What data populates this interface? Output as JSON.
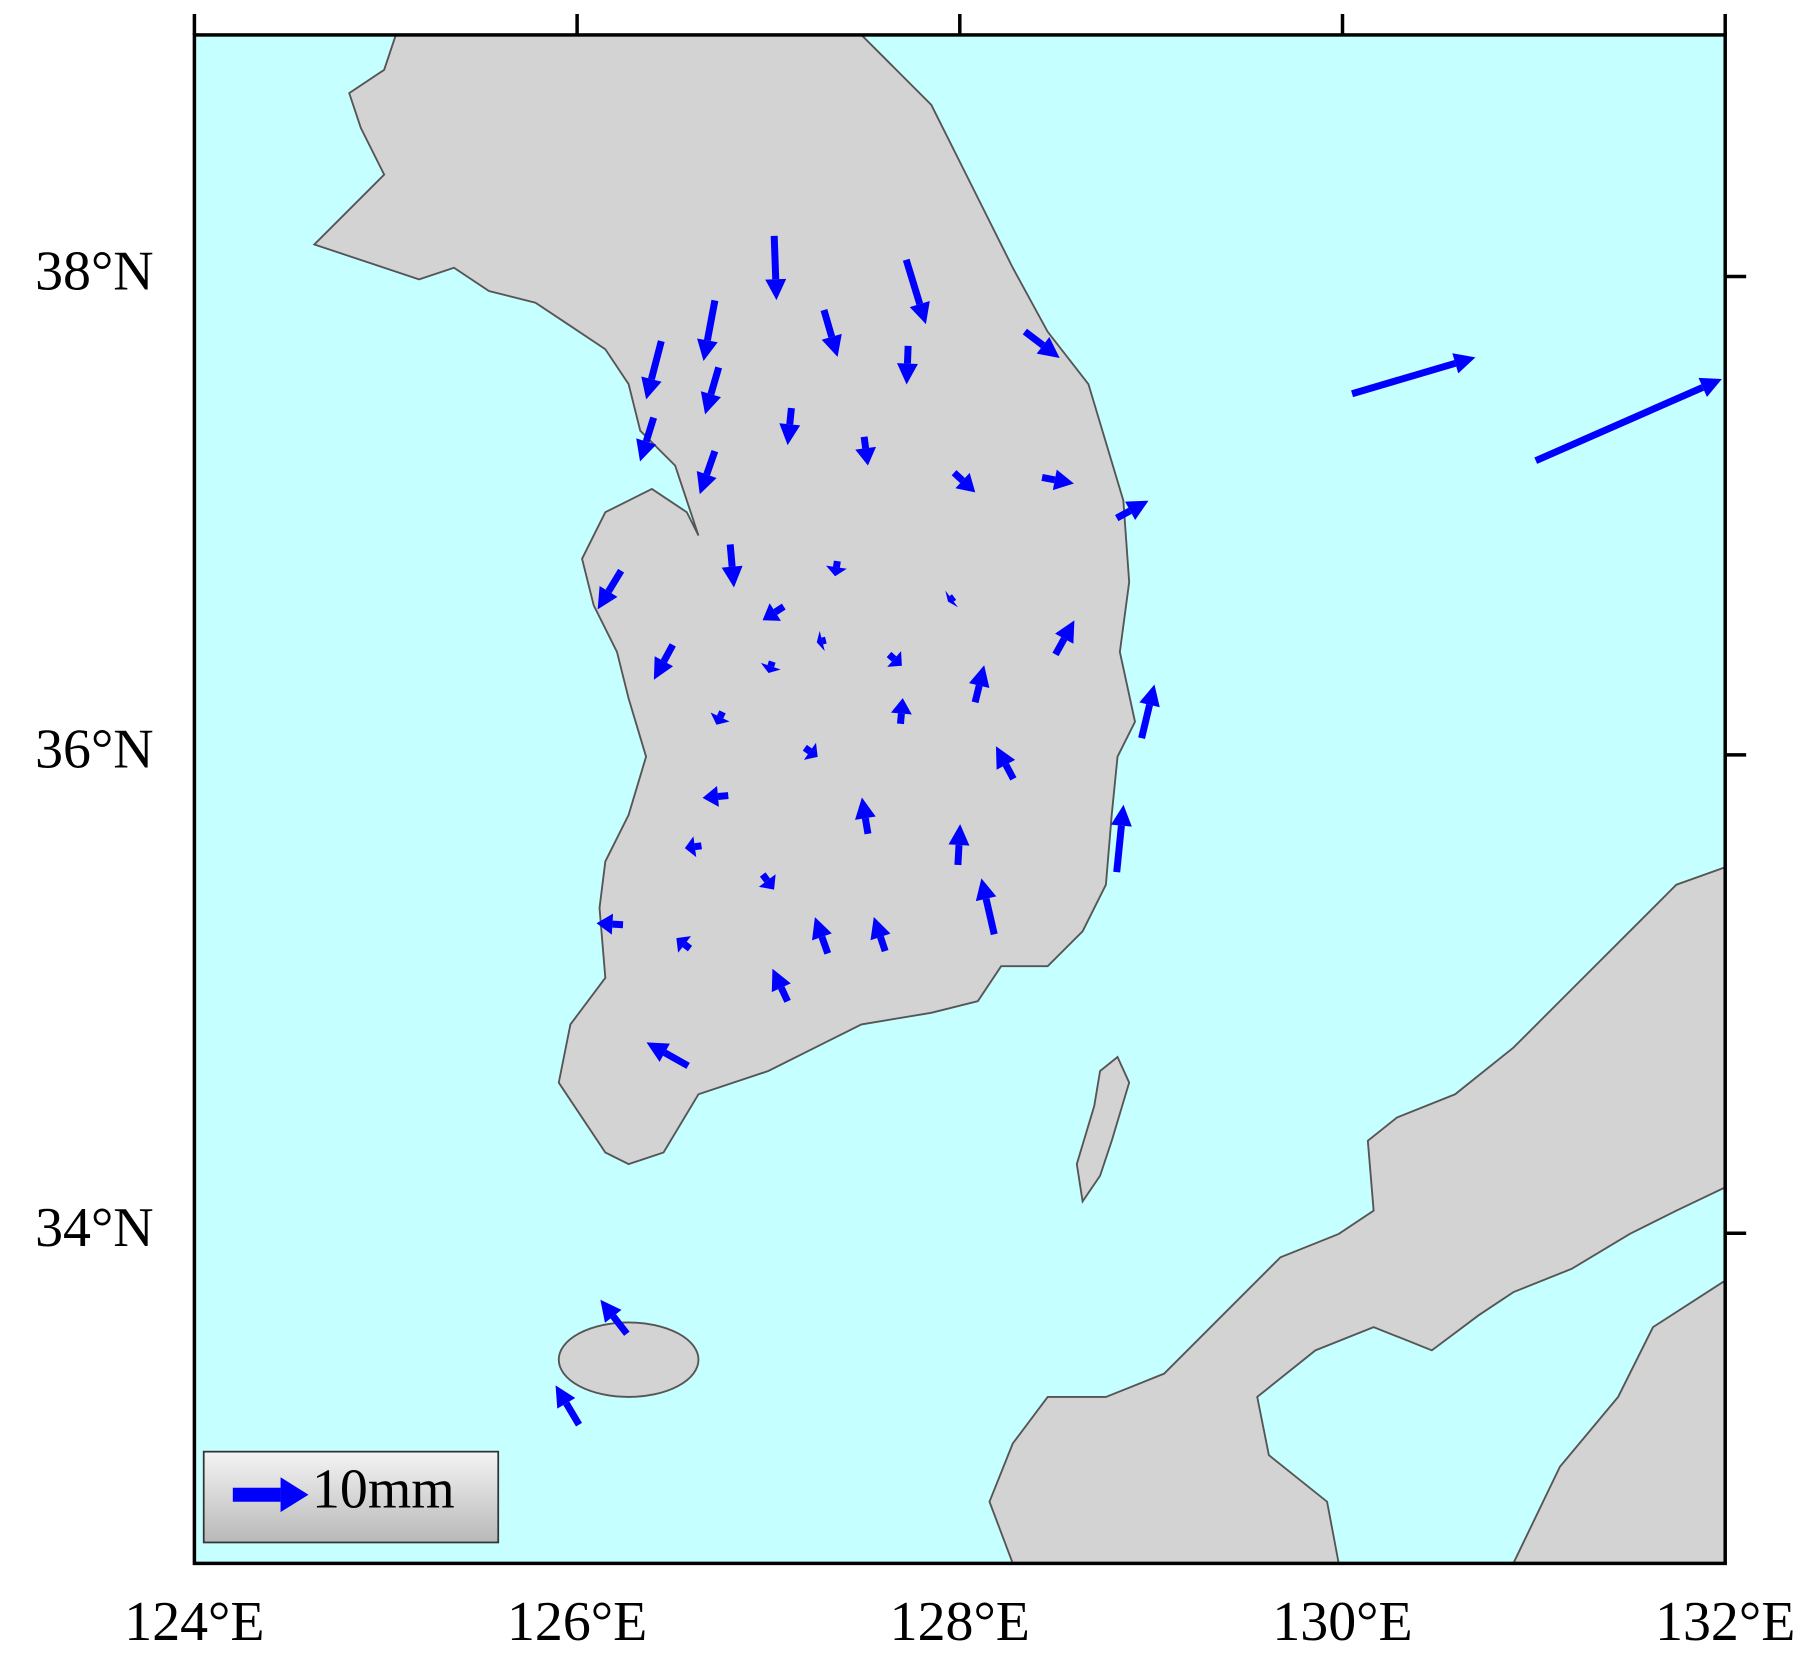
{
  "chart_data": {
    "type": "quiver",
    "xlim": [
      124,
      132
    ],
    "ylim": [
      32.62,
      39.01
    ],
    "xticks": [
      {
        "value": 124,
        "label": "124°E"
      },
      {
        "value": 126,
        "label": "126°E"
      },
      {
        "value": 128,
        "label": "128°E"
      },
      {
        "value": 130,
        "label": "130°E"
      },
      {
        "value": 132,
        "label": "132°E"
      }
    ],
    "yticks": [
      {
        "value": 34,
        "label": "34°N"
      },
      {
        "value": 36,
        "label": "36°N"
      },
      {
        "value": 38,
        "label": "38°N"
      }
    ],
    "color": "#0000ff",
    "legend": {
      "value": 10,
      "label": "10mm"
    },
    "legend_position": "lower left",
    "x": [
      127.03,
      127.72,
      126.72,
      126.44,
      127.29,
      126.74,
      128.34,
      127.73,
      126.4,
      127.12,
      127.5,
      126.72,
      127.97,
      128.43,
      128.82,
      130.05,
      131.01,
      126.8,
      127.36,
      126.23,
      127.08,
      127.97,
      126.5,
      127.3,
      128.5,
      127.02,
      127.63,
      128.08,
      128.95,
      127.69,
      126.76,
      127.19,
      128.28,
      126.79,
      127.52,
      126.65,
      127.99,
      128.82,
      126.97,
      128.18,
      126.24,
      127.31,
      127.61,
      126.59,
      127.1,
      126.58,
      126.26,
      126.01
    ],
    "y": [
      38.17,
      38.07,
      37.9,
      37.73,
      37.86,
      37.62,
      37.77,
      37.71,
      37.41,
      37.45,
      37.33,
      37.27,
      37.18,
      37.16,
      36.99,
      37.51,
      37.23,
      36.88,
      36.81,
      36.77,
      36.62,
      36.66,
      36.46,
      36.48,
      36.42,
      36.39,
      36.42,
      36.22,
      36.07,
      36.13,
      36.18,
      36.03,
      35.9,
      35.83,
      35.67,
      35.62,
      35.54,
      35.51,
      35.5,
      35.25,
      35.29,
      35.17,
      35.18,
      35.19,
      34.97,
      34.7,
      33.58,
      33.2
    ],
    "u": [
      0.3,
      2.6,
      -1.5,
      -2.0,
      1.8,
      -1.8,
      4.6,
      -0.2,
      -1.8,
      -0.5,
      0.5,
      -2.0,
      2.8,
      4.2,
      4.2,
      16.3,
      24.6,
      0.5,
      -0.3,
      -3.1,
      -2.8,
      -0.8,
      -2.5,
      -1.2,
      2.5,
      -0.5,
      1.7,
      1.2,
      1.7,
      0.3,
      -0.8,
      1.7,
      -2.3,
      -3.4,
      -0.8,
      -2.2,
      0.3,
      0.9,
      1.5,
      -1.7,
      -3.5,
      -1.7,
      -1.5,
      -1.8,
      -2.0,
      -5.5,
      -3.5,
      -3.1
    ],
    "v": [
      -8.5,
      -8.5,
      -8.0,
      -7.7,
      -6.2,
      -6.2,
      -3.5,
      -5.1,
      -5.8,
      -4.9,
      -3.8,
      -5.7,
      -2.6,
      -0.8,
      2.3,
      4.8,
      10.8,
      -5.7,
      -2.0,
      -5.1,
      -1.8,
      -0.6,
      -4.6,
      -0.3,
      4.5,
      -1.5,
      -1.5,
      4.9,
      7.1,
      3.4,
      -1.7,
      -1.2,
      4.3,
      -0.3,
      4.8,
      -0.3,
      5.4,
      8.9,
      -2.0,
      7.4,
      0.2,
      4.8,
      4.5,
      1.4,
      4.3,
      3.1,
      4.5,
      5.2
    ]
  }
}
